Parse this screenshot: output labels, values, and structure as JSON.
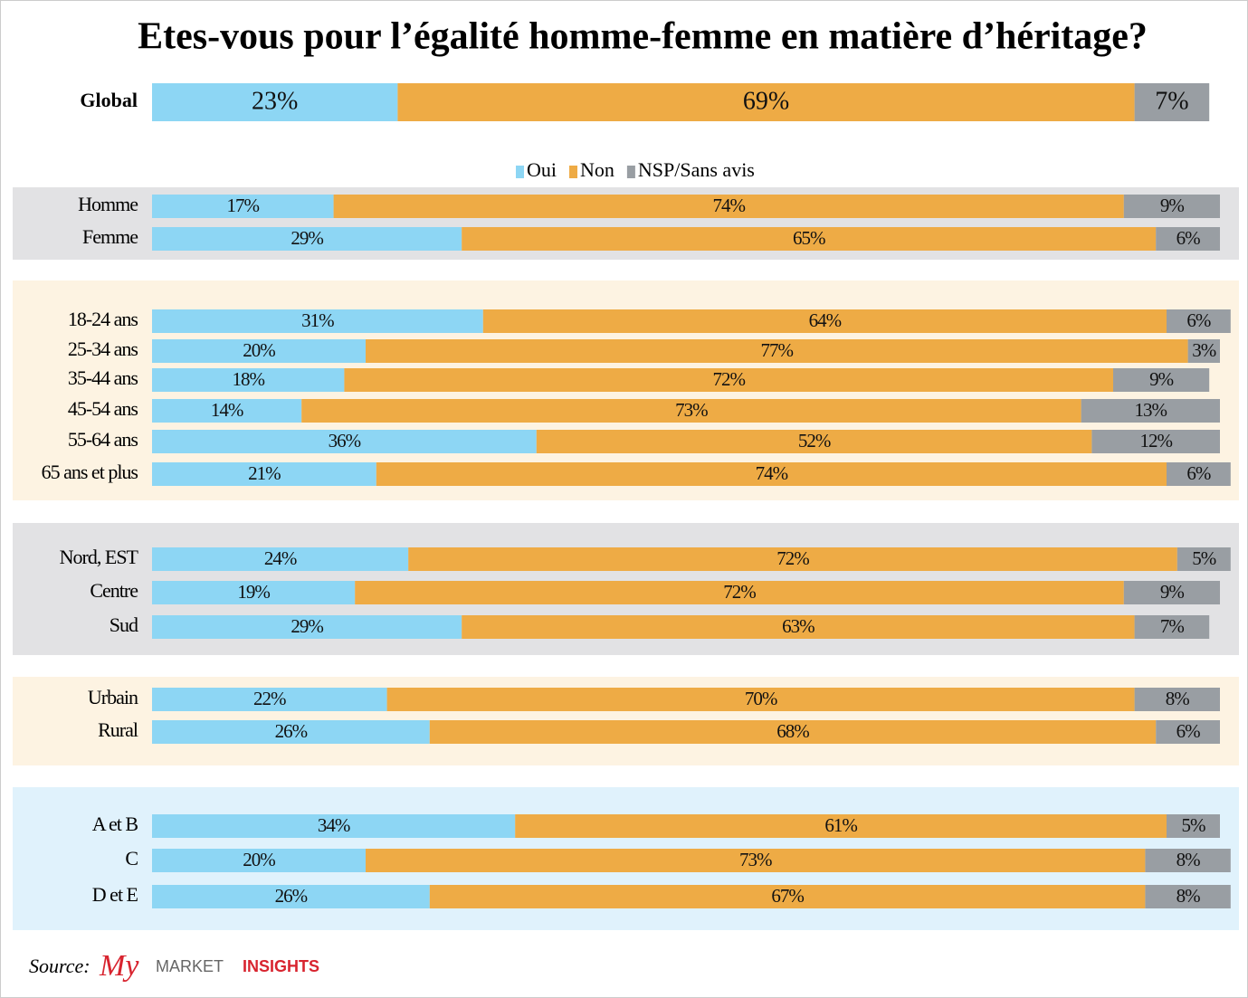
{
  "chart_data": {
    "type": "stacked-bar",
    "orientation": "horizontal",
    "title": "Etes-vous pour l’égalité homme-femme en matière d’héritage?",
    "categories": [
      "Global",
      "Homme",
      "Femme",
      "18-24 ans",
      "25-34 ans",
      "35-44 ans",
      "45-54 ans",
      "55-64 ans",
      "65 ans et plus",
      "Nord, EST",
      "Centre",
      "Sud",
      "Urbain",
      "Rural",
      "A et B",
      "C",
      "D et E"
    ],
    "series": [
      {
        "name": "Oui",
        "color": "#8dd6f4",
        "values": [
          23,
          17,
          29,
          31,
          20,
          18,
          14,
          36,
          21,
          24,
          19,
          29,
          22,
          26,
          34,
          20,
          26
        ],
        "value_labels": [
          "23%",
          "17%",
          "29%",
          "31%",
          "20%",
          "18%",
          "14%",
          "36%",
          "21%",
          "24%",
          "19%",
          "29%",
          "22%",
          "26%",
          "34%",
          "20%",
          "26%"
        ]
      },
      {
        "name": "Non",
        "color": "#eeab45",
        "values": [
          69,
          74,
          65,
          64,
          77,
          72,
          73,
          52,
          74,
          72,
          72,
          63,
          70,
          68,
          61,
          73,
          67
        ],
        "value_labels": [
          "69%",
          "74%",
          "65%",
          "64%",
          "77%",
          "72%",
          "73%",
          "52%",
          "74%",
          "72%",
          "72%",
          "63%",
          "70%",
          "68%",
          "61%",
          "73%",
          "67%"
        ]
      },
      {
        "name": "NSP/Sans avis",
        "color": "#999ea3",
        "values": [
          7,
          9,
          6,
          6,
          3,
          9,
          13,
          12,
          6,
          5,
          9,
          7,
          8,
          6,
          5,
          8,
          8
        ],
        "value_labels": [
          "7%",
          "9%",
          "6%",
          "6%",
          "3%",
          "9%",
          "13%",
          "12%",
          "6%",
          "5%",
          "9%",
          "7%",
          "8%",
          "6%",
          "5%",
          "8%",
          "8%"
        ]
      }
    ],
    "source": "Source:",
    "source_logo": [
      "My",
      "MARKET",
      "INSIGHTS"
    ]
  }
}
